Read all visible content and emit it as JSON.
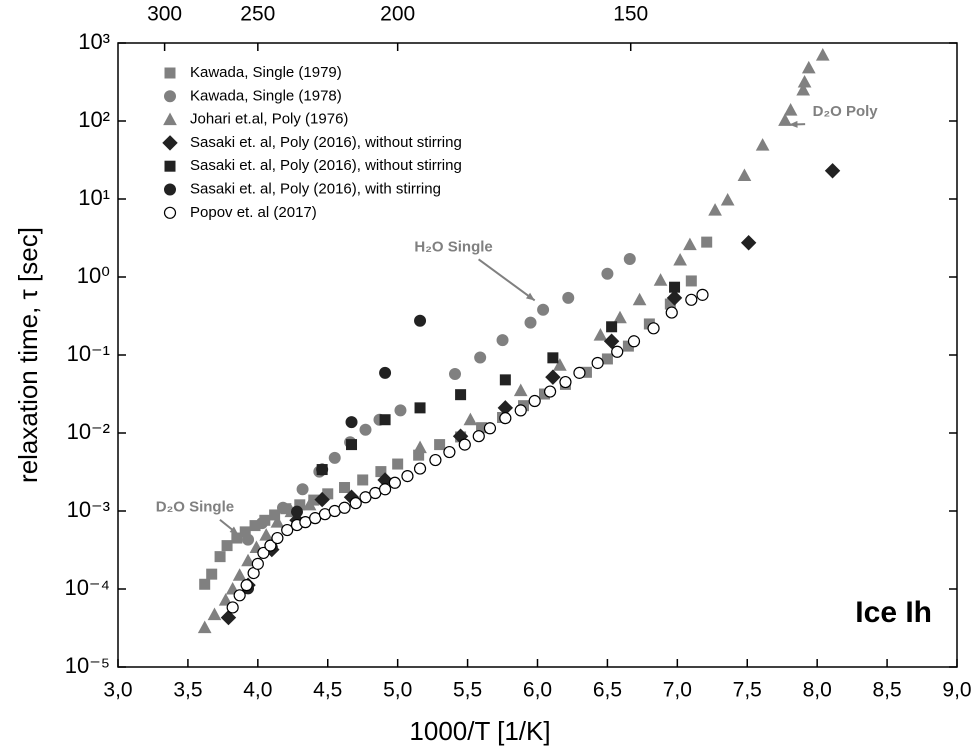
{
  "chart_data": {
    "type": "scatter",
    "xlabel": "1000/T  [1/K]",
    "ylabel": "relaxation time, τ [sec]",
    "xlim": [
      3,
      9
    ],
    "ylim": [
      1e-05,
      1000
    ],
    "ylog": true,
    "xticks": [
      {
        "value": 3,
        "label": "3,0"
      },
      {
        "value": 3.5,
        "label": "3,5"
      },
      {
        "value": 4,
        "label": "4,0"
      },
      {
        "value": 4.5,
        "label": "4,5"
      },
      {
        "value": 5,
        "label": "5,0"
      },
      {
        "value": 5.5,
        "label": "5,5"
      },
      {
        "value": 6,
        "label": "6,0"
      },
      {
        "value": 6.5,
        "label": "6,5"
      },
      {
        "value": 7,
        "label": "7,0"
      },
      {
        "value": 7.5,
        "label": "7,5"
      },
      {
        "value": 8,
        "label": "8,0"
      },
      {
        "value": 8.5,
        "label": "8,5"
      },
      {
        "value": 9,
        "label": "9,0"
      }
    ],
    "yticks": [
      {
        "value": 1e-05,
        "label": "10⁻⁵"
      },
      {
        "value": 0.0001,
        "label": "10⁻⁴"
      },
      {
        "value": 0.001,
        "label": "10⁻³"
      },
      {
        "value": 0.01,
        "label": "10⁻²"
      },
      {
        "value": 0.1,
        "label": "10⁻¹"
      },
      {
        "value": 1,
        "label": "10⁰"
      },
      {
        "value": 10,
        "label": "10¹"
      },
      {
        "value": 100,
        "label": "10²"
      },
      {
        "value": 1000,
        "label": "10³"
      }
    ],
    "x2ticks": [
      300,
      250,
      200,
      150
    ],
    "legend": "upper left",
    "annotations": [
      {
        "text": "D₂O Poly",
        "x": 8.2,
        "y": 130,
        "arrow_to": [
          7.8,
          90
        ]
      },
      {
        "text": "H₂O Single",
        "x": 5.4,
        "y": 2.4,
        "arrow_to": [
          5.98,
          0.5
        ]
      },
      {
        "text": "D₂O Single",
        "x": 3.55,
        "y": 0.0011,
        "arrow_to": [
          3.86,
          0.0005
        ]
      },
      {
        "text": "Ice Ih"
      }
    ],
    "series": [
      {
        "name": "Kawada, Single (1979)",
        "color": "#808080",
        "marker": "square",
        "filled": true,
        "x": [
          3.62,
          3.67,
          3.73,
          3.78,
          3.85,
          3.91,
          3.98,
          4.05,
          4.12,
          4.2,
          4.3,
          4.4,
          4.5,
          4.62,
          4.75,
          4.88,
          5.0,
          5.15,
          5.3,
          5.45,
          5.6,
          5.75,
          5.9,
          6.05,
          6.2,
          6.35,
          6.5,
          6.65,
          6.8,
          6.95,
          7.1,
          7.21
        ],
        "values": [
          0.000115,
          0.000155,
          0.00026,
          0.00036,
          0.00045,
          0.00054,
          0.00065,
          0.00076,
          0.00089,
          0.00107,
          0.0012,
          0.00138,
          0.00166,
          0.002,
          0.0025,
          0.0032,
          0.004,
          0.0052,
          0.0071,
          0.0089,
          0.0117,
          0.0158,
          0.0224,
          0.0316,
          0.042,
          0.06,
          0.089,
          0.13,
          0.25,
          0.45,
          0.89,
          2.8
        ]
      },
      {
        "name": "Kawada, Single (1978)",
        "color": "#808080",
        "marker": "circle",
        "filled": true,
        "x": [
          3.93,
          4.03,
          4.18,
          4.32,
          4.44,
          4.55,
          4.66,
          4.77,
          4.87,
          5.02,
          5.41,
          5.59,
          5.75,
          5.95,
          6.04,
          6.22,
          6.5,
          6.66
        ],
        "values": [
          0.00043,
          0.0007,
          0.0011,
          0.0019,
          0.0032,
          0.0048,
          0.0076,
          0.011,
          0.0148,
          0.0195,
          0.057,
          0.093,
          0.155,
          0.26,
          0.38,
          0.54,
          1.1,
          1.7
        ]
      },
      {
        "name": "Johari et.al, Poly (1976)",
        "color": "#808080",
        "marker": "triangle",
        "filled": true,
        "x": [
          3.62,
          3.69,
          3.77,
          3.82,
          3.87,
          3.93,
          3.99,
          4.06,
          4.14,
          4.24,
          4.37,
          5.16,
          5.52,
          5.88,
          6.16,
          6.45,
          6.59,
          6.73,
          6.88,
          7.02,
          7.09,
          7.27,
          7.36,
          7.48,
          7.61,
          7.77,
          7.81,
          7.9,
          7.91,
          7.94,
          8.04
        ],
        "values": [
          3.2e-05,
          4.7e-05,
          7.2e-05,
          0.0001,
          0.00015,
          0.00023,
          0.00034,
          0.00049,
          0.00072,
          0.00098,
          0.0012,
          0.0065,
          0.0148,
          0.035,
          0.074,
          0.18,
          0.3,
          0.51,
          0.91,
          1.65,
          2.6,
          7.2,
          9.7,
          20,
          49,
          102,
          138,
          250,
          316,
          480,
          700
        ]
      },
      {
        "name": "Sasaki et. al, Poly (2016), without stirring",
        "color": "#222222",
        "marker": "diamond",
        "filled": true,
        "x": [
          3.79,
          3.93,
          4.1,
          4.28,
          4.46,
          4.67,
          4.91,
          5.45,
          5.77,
          6.11,
          6.53,
          6.98,
          7.51,
          8.11
        ],
        "values": [
          4.3e-05,
          0.000112,
          0.00032,
          0.00076,
          0.0014,
          0.0015,
          0.0025,
          0.0091,
          0.021,
          0.052,
          0.15,
          0.54,
          2.75,
          23
        ]
      },
      {
        "name": "Sasaki et. al, Poly (2016), without stirring",
        "color": "#222222",
        "marker": "square",
        "filled": true,
        "x": [
          4.46,
          4.67,
          4.91,
          5.16,
          5.45,
          5.77,
          6.11,
          6.53,
          6.98
        ],
        "values": [
          0.0034,
          0.0071,
          0.0148,
          0.021,
          0.031,
          0.048,
          0.092,
          0.23,
          0.74
        ]
      },
      {
        "name": "Sasaki et. al, Poly (2016), with stirring",
        "color": "#222222",
        "marker": "circle",
        "filled": true,
        "x": [
          3.93,
          4.1,
          4.28,
          4.46,
          4.67,
          4.91,
          5.16
        ],
        "values": [
          0.000102,
          0.00034,
          0.00098,
          0.0034,
          0.0138,
          0.059,
          0.275
        ]
      },
      {
        "name": "Popov et. al (2017)",
        "color": "#000000",
        "marker": "circle",
        "filled": false,
        "x": [
          3.82,
          3.87,
          3.92,
          3.97,
          4.0,
          4.04,
          4.09,
          4.14,
          4.21,
          4.28,
          4.34,
          4.41,
          4.48,
          4.55,
          4.62,
          4.7,
          4.77,
          4.84,
          4.91,
          4.98,
          5.07,
          5.16,
          5.27,
          5.37,
          5.48,
          5.58,
          5.66,
          5.77,
          5.88,
          5.98,
          6.09,
          6.2,
          6.3,
          6.43,
          6.57,
          6.69,
          6.83,
          6.96,
          7.1,
          7.18
        ],
        "values": [
          5.8e-05,
          8.3e-05,
          0.000112,
          0.00016,
          0.00021,
          0.00029,
          0.00036,
          0.00045,
          0.00057,
          0.00066,
          0.00072,
          0.00081,
          0.00091,
          0.001,
          0.0011,
          0.00126,
          0.0015,
          0.0017,
          0.0019,
          0.0023,
          0.0028,
          0.0035,
          0.0045,
          0.0057,
          0.0071,
          0.0091,
          0.0115,
          0.0155,
          0.0195,
          0.0257,
          0.034,
          0.045,
          0.059,
          0.079,
          0.11,
          0.15,
          0.22,
          0.35,
          0.51,
          0.59
        ]
      }
    ]
  }
}
